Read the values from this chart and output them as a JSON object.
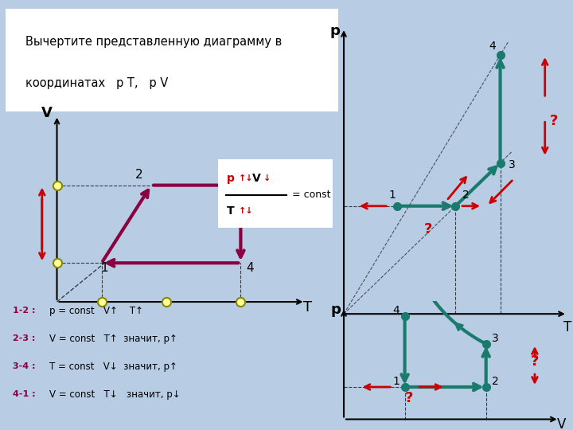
{
  "bg_color": "#b8cce4",
  "teal_color": "#1a7a6e",
  "dark_red_color": "#8b0040",
  "red_color": "#cc0000",
  "yellow_box": "#ffff99",
  "legend_texts": [
    [
      "1-2 :",
      "p = const   V↑    T↑"
    ],
    [
      "2-3 :",
      "V = const   T↑  значит, p↑"
    ],
    [
      "3-4 :",
      "T = const   V↓  значит, p↑"
    ],
    [
      "4-1 :",
      "V = const   T↓   значит, p↓"
    ]
  ]
}
